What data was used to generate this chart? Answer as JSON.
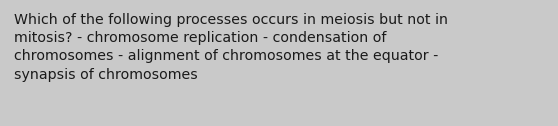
{
  "text": "Which of the following processes occurs in meiosis but not in\nmitosis? - chromosome replication - condensation of\nchromosomes - alignment of chromosomes at the equator -\nsynapsis of chromosomes",
  "background_color": "#c9c9c9",
  "text_color": "#1a1a1a",
  "font_size": 10.2,
  "fig_width": 5.58,
  "fig_height": 1.26,
  "dpi": 100
}
